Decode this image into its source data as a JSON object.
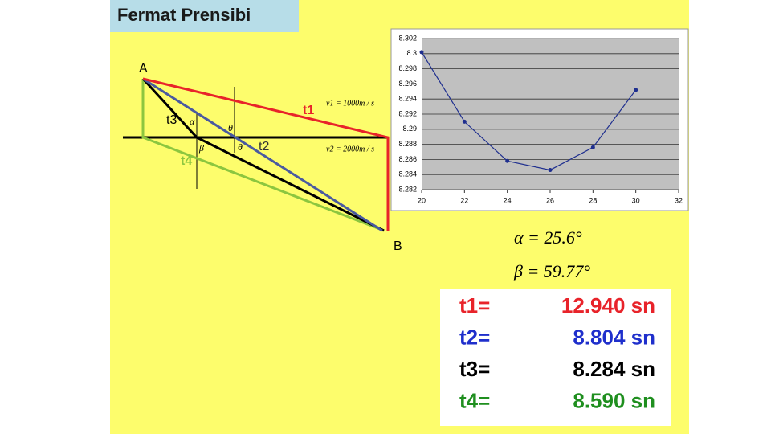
{
  "header": {
    "title": "Fermat Prensibi"
  },
  "diagram": {
    "point_a": "A",
    "point_b": "B",
    "t1": "t1",
    "t2": "t2",
    "t3": "t3",
    "t4": "t4",
    "alpha": "α",
    "theta1": "θ",
    "theta2": "θ",
    "beta": "β",
    "v1": "v1 = 1000m / s",
    "v2": "v2 = 2000m / s"
  },
  "chart_data": {
    "type": "line",
    "x": [
      20,
      22,
      24,
      26,
      28,
      30
    ],
    "series": [
      {
        "name": "t3",
        "color": "#1f2f8f",
        "values": [
          8.3002,
          8.291,
          8.2858,
          8.2846,
          8.2876,
          8.2952
        ]
      }
    ],
    "xlim": [
      20,
      32
    ],
    "xticks": [
      20,
      22,
      24,
      26,
      28,
      30,
      32
    ],
    "ylim": [
      8.282,
      8.302
    ],
    "yticks": [
      8.282,
      8.284,
      8.286,
      8.288,
      8.29,
      8.292,
      8.294,
      8.296,
      8.298,
      8.3,
      8.302
    ],
    "grid": true
  },
  "results": {
    "alpha": "α = 25.6°",
    "beta": "β = 59.77°"
  },
  "table": {
    "rows": [
      [
        "t1=",
        "12.940 sn"
      ],
      [
        "t2=",
        "8.804 sn"
      ],
      [
        "t3=",
        "8.284 sn"
      ],
      [
        "t4=",
        "8.590 sn"
      ]
    ]
  }
}
